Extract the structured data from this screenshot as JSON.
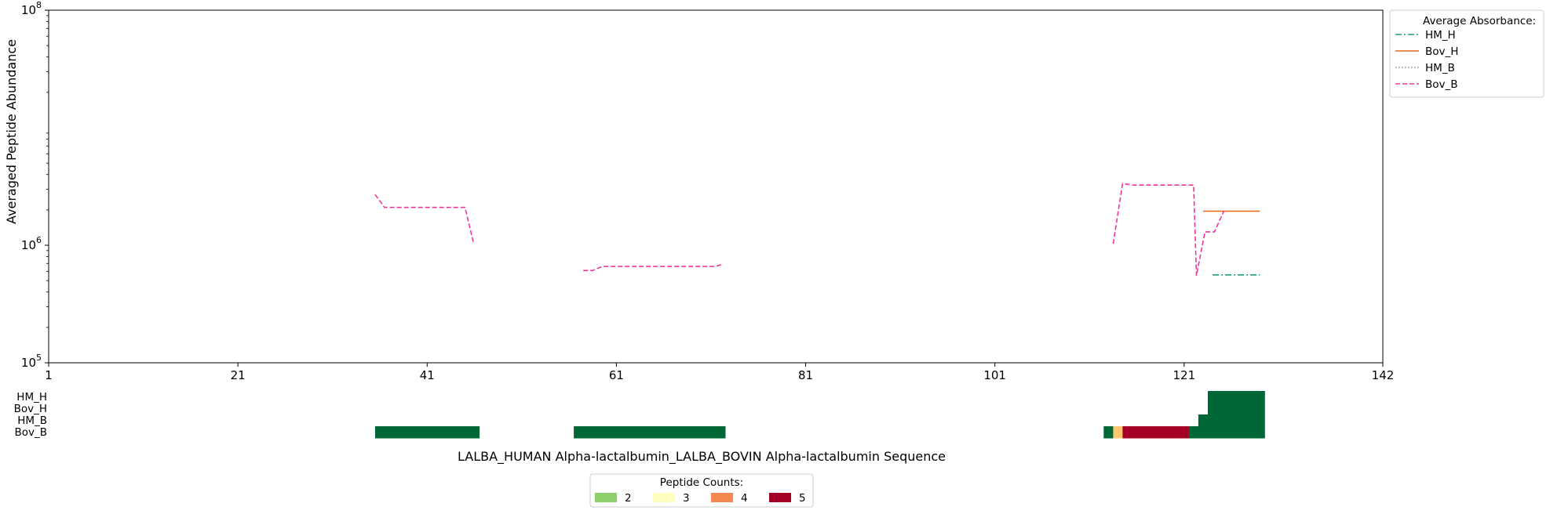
{
  "chart_data": [
    {
      "type": "line",
      "title": "",
      "ylabel": "Averaged Peptide Abundance",
      "xlabel": "",
      "yscale": "log",
      "ylim": [
        100000,
        100000000
      ],
      "xlim": [
        1,
        142
      ],
      "xticks": [
        1,
        21,
        41,
        61,
        81,
        101,
        121,
        142
      ],
      "yticks": [
        {
          "value": 100000,
          "base": "10",
          "exp": "5"
        },
        {
          "value": 1000000,
          "base": "10",
          "exp": "6"
        },
        {
          "value": 100000000,
          "base": "10",
          "exp": "8"
        }
      ],
      "grid": false,
      "legend": {
        "title": "Average Absorbance:",
        "placement": "outside-top-right"
      },
      "series": [
        {
          "name": "HM_H",
          "color": "#1a9e7a",
          "dash": "dashdot",
          "segments": [
            [
              [
                124,
                560000
              ],
              [
                129,
                560000
              ]
            ]
          ]
        },
        {
          "name": "Bov_H",
          "color": "#e8641b",
          "dash": "solid",
          "segments": [
            [
              [
                123,
                1950000
              ],
              [
                129,
                1950000
              ]
            ]
          ]
        },
        {
          "name": "HM_B",
          "color": "#8c8c8c",
          "dash": "dotted",
          "segments": []
        },
        {
          "name": "Bov_B",
          "color": "#f0359a",
          "dash": "dashed",
          "segments": [
            [
              [
                35.5,
                2700000
              ],
              [
                36.5,
                2100000
              ],
              [
                37,
                2100000
              ],
              [
                45,
                2100000
              ],
              [
                45.9,
                1050000
              ]
            ],
            [
              [
                57.5,
                610000
              ],
              [
                58.5,
                610000
              ],
              [
                59.5,
                660000
              ],
              [
                70,
                660000
              ],
              [
                71.5,
                660000
              ],
              [
                72.2,
                690000
              ]
            ],
            [
              [
                113.5,
                1030000
              ],
              [
                114.5,
                3350000
              ],
              [
                115.5,
                3250000
              ],
              [
                122,
                3250000
              ],
              [
                122.3,
                550000
              ],
              [
                123.2,
                1300000
              ],
              [
                124.2,
                1300000
              ],
              [
                125.2,
                1950000
              ]
            ]
          ]
        }
      ]
    },
    {
      "type": "heatmap",
      "rows": [
        "HM_H",
        "Bov_H",
        "HM_B",
        "Bov_B"
      ],
      "xlabel": "LALBA_HUMAN Alpha-lactalbumin_LALBA_BOVIN Alpha-lactalbumin Sequence",
      "legend": {
        "title": "Peptide Counts:",
        "placement": "bottom-center",
        "items": [
          {
            "label": "2",
            "color": "#8fce6c"
          },
          {
            "label": "3",
            "color": "#fefebf"
          },
          {
            "label": "4",
            "color": "#f5884e"
          },
          {
            "label": "5",
            "color": "#a50026"
          }
        ]
      },
      "cells": [
        {
          "row": "HM_H",
          "x_start": 123.5,
          "x_end": 129.5,
          "color": "#006837"
        },
        {
          "row": "Bov_H",
          "x_start": 123.5,
          "x_end": 129.5,
          "color": "#006837"
        },
        {
          "row": "HM_B",
          "x_start": 122.5,
          "x_end": 129.5,
          "color": "#006837"
        },
        {
          "row": "Bov_B",
          "x_start": 35.5,
          "x_end": 46.5,
          "color": "#006837"
        },
        {
          "row": "Bov_B",
          "x_start": 56.5,
          "x_end": 72.5,
          "color": "#006837"
        },
        {
          "row": "Bov_B",
          "x_start": 112.5,
          "x_end": 113.5,
          "color": "#006837"
        },
        {
          "row": "Bov_B",
          "x_start": 113.5,
          "x_end": 114.5,
          "color": "#fdc86f"
        },
        {
          "row": "Bov_B",
          "x_start": 114.5,
          "x_end": 121.5,
          "color": "#a50026"
        },
        {
          "row": "Bov_B",
          "x_start": 121.5,
          "x_end": 129.5,
          "color": "#006837"
        }
      ]
    }
  ]
}
